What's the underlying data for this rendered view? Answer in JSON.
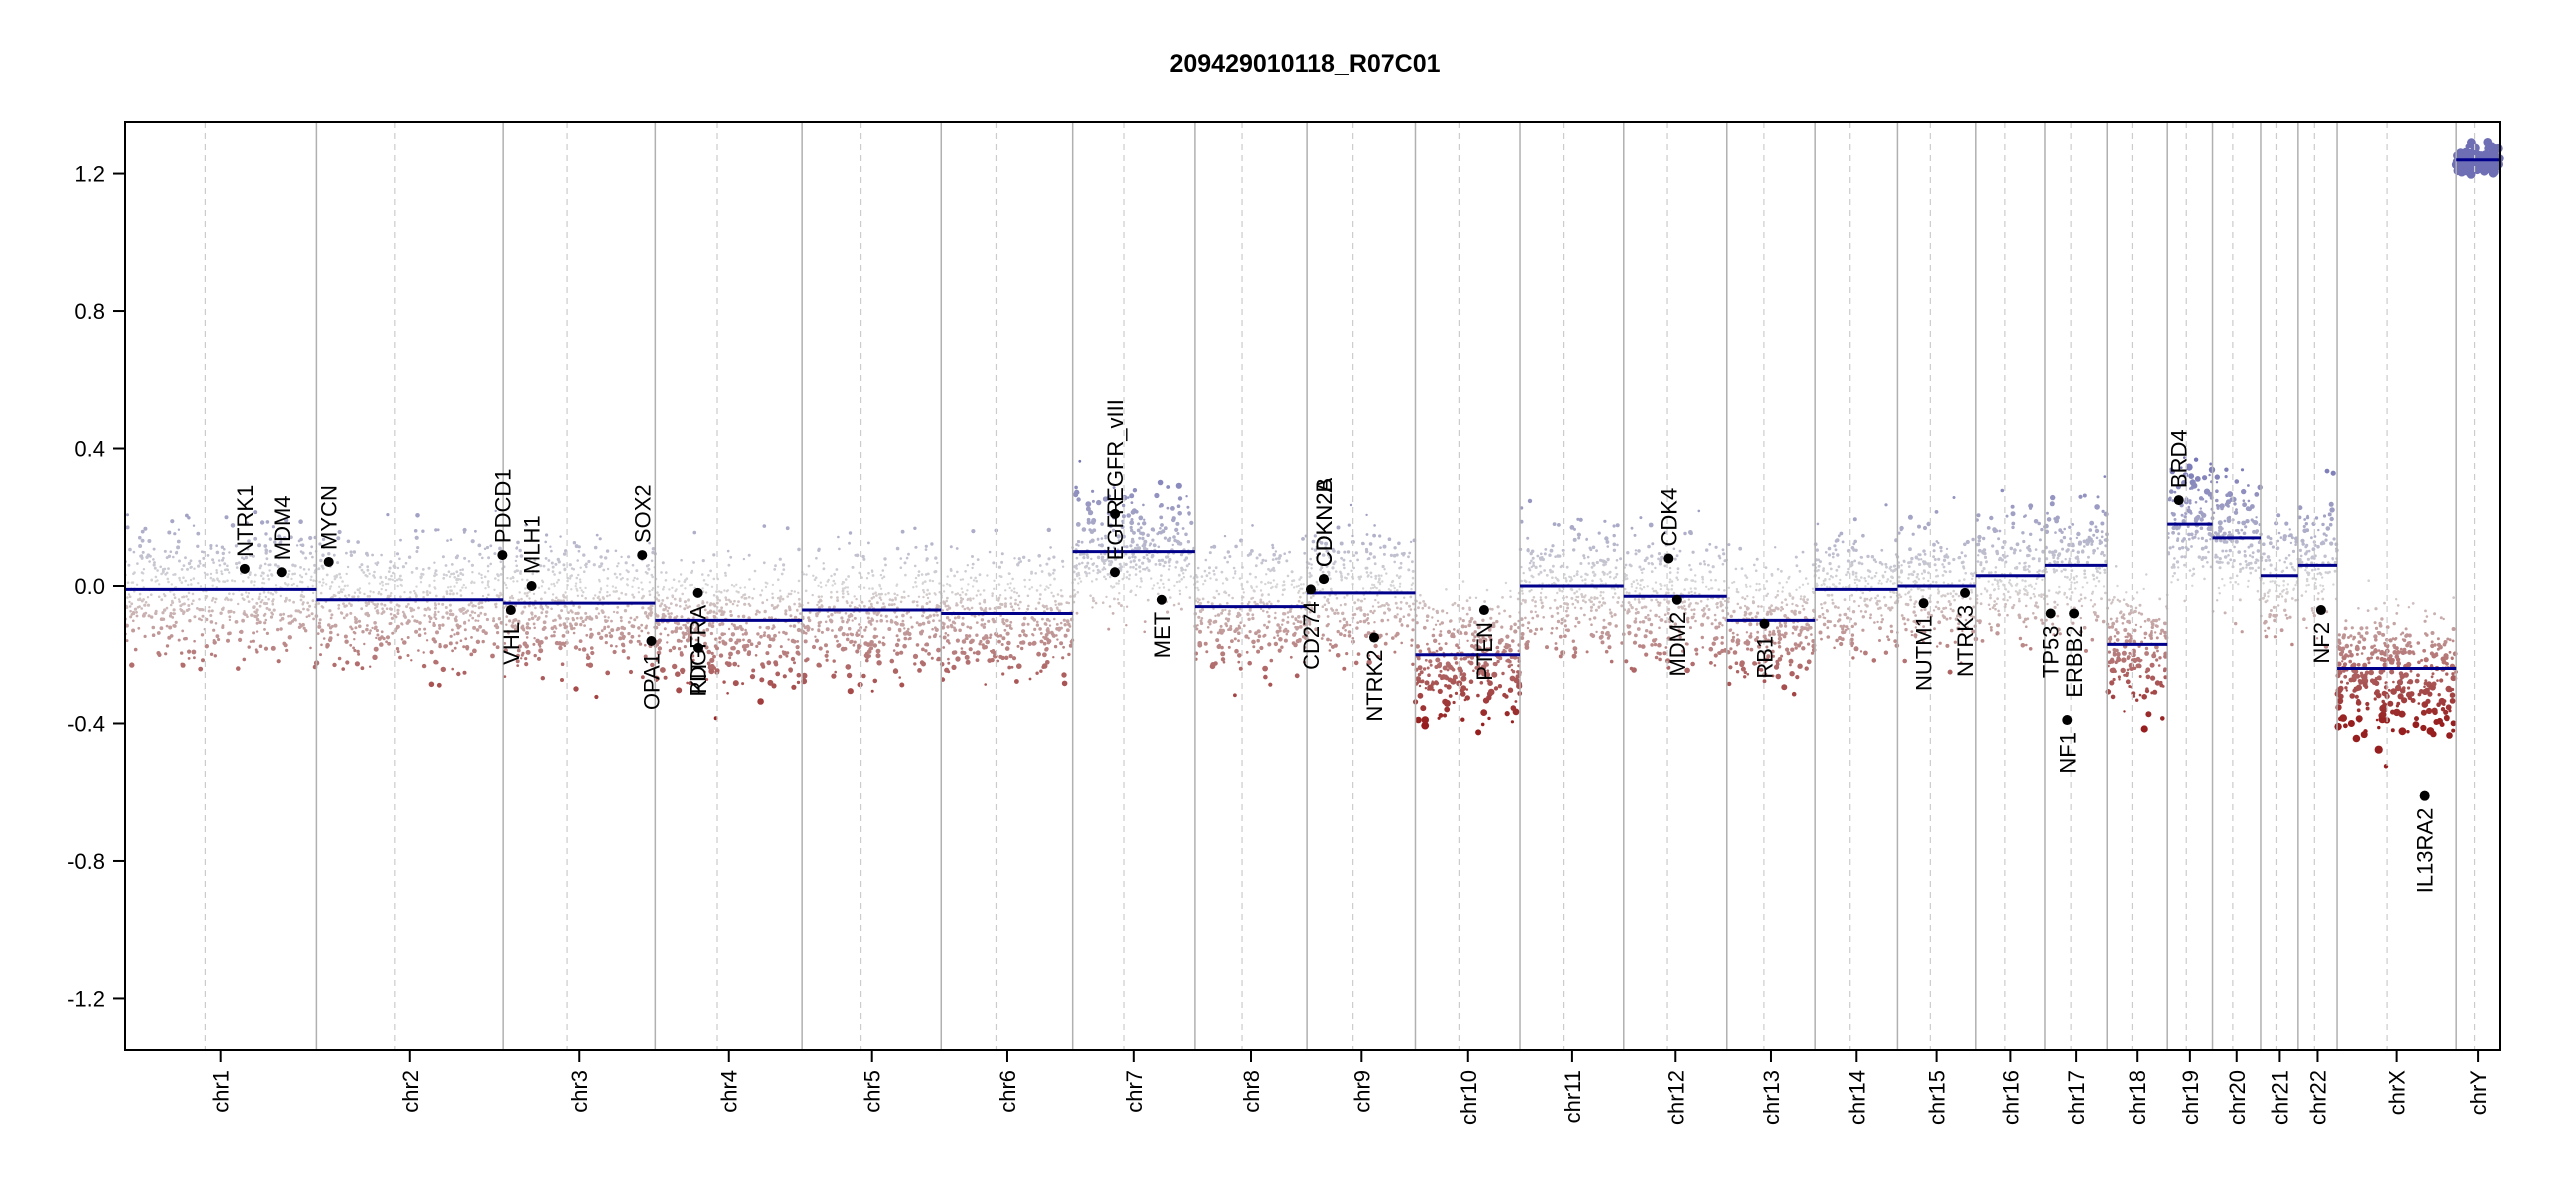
{
  "chart_data": {
    "type": "scatter",
    "title": "209429010118_R07C01",
    "xlabel": "",
    "ylabel": "",
    "ylim": [
      -1.35,
      1.35
    ],
    "y_ticks": [
      1.2,
      0.8,
      0.4,
      0.0,
      -0.4,
      -0.8,
      -1.2
    ],
    "y_tick_labels": [
      "1.2",
      "0.8",
      "0.4",
      "0.0",
      "-0.4",
      "-0.8",
      "-1.2"
    ],
    "grid": false,
    "colors": {
      "positive": "#6c6cb0",
      "neutral": "#cfcfcf",
      "negative": "#a02020",
      "segment": "#00008b",
      "boundary": "#b0b0b0"
    },
    "chromosomes": [
      {
        "name": "chr1",
        "size": 249
      },
      {
        "name": "chr2",
        "size": 243
      },
      {
        "name": "chr3",
        "size": 198
      },
      {
        "name": "chr4",
        "size": 191
      },
      {
        "name": "chr5",
        "size": 181
      },
      {
        "name": "chr6",
        "size": 171
      },
      {
        "name": "chr7",
        "size": 159
      },
      {
        "name": "chr8",
        "size": 146
      },
      {
        "name": "chr9",
        "size": 141
      },
      {
        "name": "chr10",
        "size": 136
      },
      {
        "name": "chr11",
        "size": 135
      },
      {
        "name": "chr12",
        "size": 134
      },
      {
        "name": "chr13",
        "size": 115
      },
      {
        "name": "chr14",
        "size": 107
      },
      {
        "name": "chr15",
        "size": 102
      },
      {
        "name": "chr16",
        "size": 90
      },
      {
        "name": "chr17",
        "size": 81
      },
      {
        "name": "chr18",
        "size": 78
      },
      {
        "name": "chr19",
        "size": 59
      },
      {
        "name": "chr20",
        "size": 63
      },
      {
        "name": "chr21",
        "size": 48
      },
      {
        "name": "chr22",
        "size": 51
      },
      {
        "name": "chrX",
        "size": 155
      },
      {
        "name": "chrY",
        "size": 57
      }
    ],
    "segments": [
      {
        "chr": "chr1",
        "start": 0,
        "end": 249,
        "value": -0.01
      },
      {
        "chr": "chr2",
        "start": 0,
        "end": 243,
        "value": -0.04
      },
      {
        "chr": "chr3",
        "start": 0,
        "end": 198,
        "value": -0.05
      },
      {
        "chr": "chr4",
        "start": 0,
        "end": 191,
        "value": -0.1
      },
      {
        "chr": "chr5",
        "start": 0,
        "end": 181,
        "value": -0.07
      },
      {
        "chr": "chr6",
        "start": 0,
        "end": 171,
        "value": -0.08
      },
      {
        "chr": "chr7",
        "start": 0,
        "end": 159,
        "value": 0.1
      },
      {
        "chr": "chr8",
        "start": 0,
        "end": 146,
        "value": -0.06
      },
      {
        "chr": "chr9",
        "start": 0,
        "end": 141,
        "value": -0.02
      },
      {
        "chr": "chr10",
        "start": 0,
        "end": 136,
        "value": -0.2
      },
      {
        "chr": "chr11",
        "start": 0,
        "end": 135,
        "value": 0.0
      },
      {
        "chr": "chr12",
        "start": 0,
        "end": 134,
        "value": -0.03
      },
      {
        "chr": "chr13",
        "start": 0,
        "end": 115,
        "value": -0.1
      },
      {
        "chr": "chr14",
        "start": 0,
        "end": 107,
        "value": -0.01
      },
      {
        "chr": "chr15",
        "start": 0,
        "end": 102,
        "value": 0.0
      },
      {
        "chr": "chr16",
        "start": 0,
        "end": 90,
        "value": 0.03
      },
      {
        "chr": "chr17",
        "start": 0,
        "end": 81,
        "value": 0.06
      },
      {
        "chr": "chr18",
        "start": 0,
        "end": 78,
        "value": -0.17
      },
      {
        "chr": "chr19",
        "start": 0,
        "end": 59,
        "value": 0.18
      },
      {
        "chr": "chr20",
        "start": 0,
        "end": 63,
        "value": 0.14
      },
      {
        "chr": "chr21",
        "start": 0,
        "end": 48,
        "value": 0.03
      },
      {
        "chr": "chr22",
        "start": 0,
        "end": 51,
        "value": 0.06
      },
      {
        "chr": "chrX",
        "start": 0,
        "end": 155,
        "value": -0.24
      },
      {
        "chr": "chrY",
        "start": 0,
        "end": 57,
        "value": 1.24
      }
    ],
    "genes": [
      {
        "name": "NTRK1",
        "chr": "chr1",
        "pos": 156,
        "value": 0.05
      },
      {
        "name": "MDM4",
        "chr": "chr1",
        "pos": 204,
        "value": 0.04
      },
      {
        "name": "MYCN",
        "chr": "chr2",
        "pos": 16,
        "value": 0.07
      },
      {
        "name": "PDCD1",
        "chr": "chr2",
        "pos": 242,
        "value": 0.09
      },
      {
        "name": "VHL",
        "chr": "chr3",
        "pos": 10,
        "value": -0.07
      },
      {
        "name": "MLH1",
        "chr": "chr3",
        "pos": 37,
        "value": 0.0
      },
      {
        "name": "SOX2",
        "chr": "chr3",
        "pos": 181,
        "value": 0.09
      },
      {
        "name": "OPA1",
        "chr": "chr3",
        "pos": 193,
        "value": -0.16
      },
      {
        "name": "PDGFRA",
        "chr": "chr4",
        "pos": 55,
        "value": -0.02
      },
      {
        "name": "KIT",
        "chr": "chr4",
        "pos": 55.5,
        "value": -0.18
      },
      {
        "name": "EGFR",
        "chr": "chr7",
        "pos": 55,
        "value": 0.04
      },
      {
        "name": "EGFR_vIII",
        "chr": "chr7",
        "pos": 55.2,
        "value": 0.21
      },
      {
        "name": "MET",
        "chr": "chr7",
        "pos": 116,
        "value": -0.04
      },
      {
        "name": "CD274",
        "chr": "chr9",
        "pos": 5,
        "value": -0.01
      },
      {
        "name": "CDKN2A",
        "chr": "chr9",
        "pos": 21.9,
        "value": 0.02
      },
      {
        "name": "CDKN2B",
        "chr": "chr9",
        "pos": 22.0,
        "value": 0.02
      },
      {
        "name": "NTRK2",
        "chr": "chr9",
        "pos": 87,
        "value": -0.15
      },
      {
        "name": "PTEN",
        "chr": "chr10",
        "pos": 89,
        "value": -0.07
      },
      {
        "name": "CDK4",
        "chr": "chr12",
        "pos": 58,
        "value": 0.08
      },
      {
        "name": "MDM2",
        "chr": "chr12",
        "pos": 69,
        "value": -0.04
      },
      {
        "name": "RB1",
        "chr": "chr13",
        "pos": 49,
        "value": -0.11
      },
      {
        "name": "NUTM1",
        "chr": "chr15",
        "pos": 34,
        "value": -0.05
      },
      {
        "name": "NTRK3",
        "chr": "chr15",
        "pos": 88,
        "value": -0.02
      },
      {
        "name": "TP53",
        "chr": "chr17",
        "pos": 7.5,
        "value": -0.08
      },
      {
        "name": "NF1",
        "chr": "chr17",
        "pos": 29,
        "value": -0.39
      },
      {
        "name": "ERBB2",
        "chr": "chr17",
        "pos": 37.9,
        "value": -0.08
      },
      {
        "name": "BRD4",
        "chr": "chr19",
        "pos": 15,
        "value": 0.25
      },
      {
        "name": "NF2",
        "chr": "chr22",
        "pos": 30,
        "value": -0.07
      },
      {
        "name": "IL13RA2",
        "chr": "chrX",
        "pos": 114,
        "value": -0.61
      }
    ]
  }
}
